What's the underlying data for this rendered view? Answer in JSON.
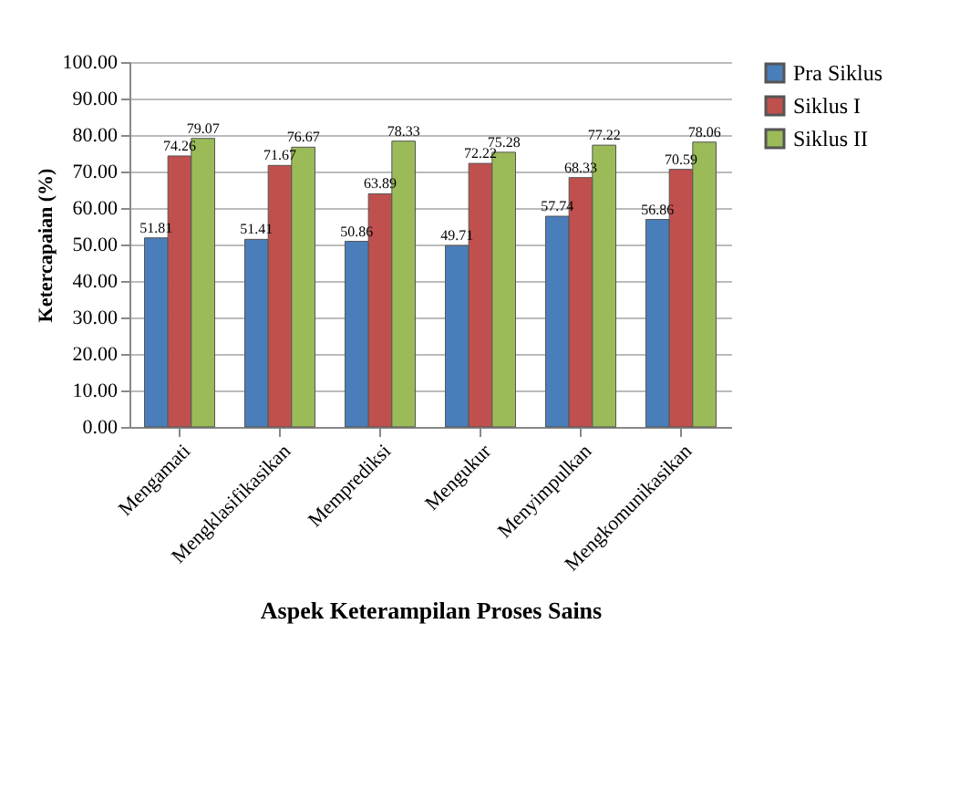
{
  "chart_data": {
    "type": "bar",
    "xlabel": "Aspek Keterampilan Proses Sains",
    "ylabel": "Ketercapaian (%)",
    "categories": [
      "Mengamati",
      "Mengklasifikasikan",
      "Memprediksi",
      "Mengukur",
      "Menyimpulkan",
      "Mengkomunikasikan"
    ],
    "series": [
      {
        "name": "Pra Siklus",
        "color": "#4a7ebb",
        "values": [
          51.81,
          51.41,
          50.86,
          49.71,
          57.74,
          56.86
        ]
      },
      {
        "name": "Siklus I",
        "color": "#c0504d",
        "values": [
          74.26,
          71.67,
          63.89,
          72.22,
          68.33,
          70.59
        ]
      },
      {
        "name": "Siklus II",
        "color": "#9bbb59",
        "values": [
          79.07,
          76.67,
          78.33,
          75.28,
          77.22,
          78.06
        ]
      }
    ],
    "ylim": [
      0,
      100
    ],
    "yticks": [
      {
        "value": 0,
        "label": "0.00"
      },
      {
        "value": 10,
        "label": "10.00"
      },
      {
        "value": 20,
        "label": "20.00"
      },
      {
        "value": 30,
        "label": "30.00"
      },
      {
        "value": 40,
        "label": "40.00"
      },
      {
        "value": 50,
        "label": "50.00"
      },
      {
        "value": 60,
        "label": "60.00"
      },
      {
        "value": 70,
        "label": "70.00"
      },
      {
        "value": 80,
        "label": "80.00"
      },
      {
        "value": 90,
        "label": "90.00"
      },
      {
        "value": 100,
        "label": "100.00"
      }
    ],
    "grid": "y",
    "legend": "right",
    "data_labels": true
  }
}
